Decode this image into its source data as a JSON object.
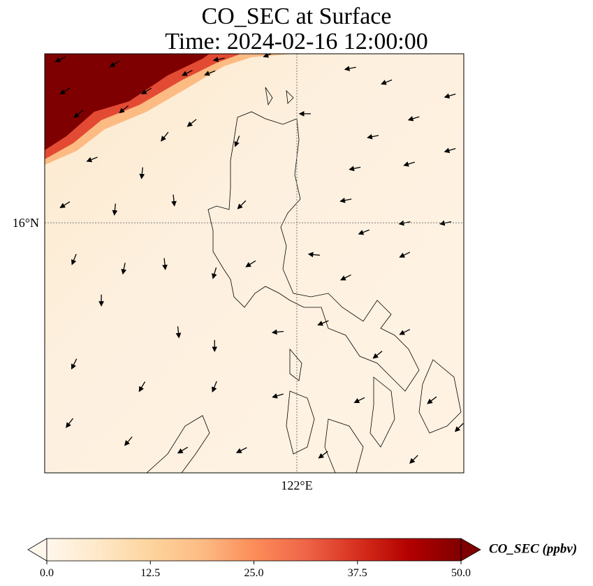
{
  "chart_data": {
    "type": "heatmap",
    "title_line1": "CO_SEC at Surface",
    "title_line2": "Time: 2024-02-16 12:00:00",
    "extent": {
      "lon": [
        116.45,
        125.7
      ],
      "lat": [
        10.5,
        19.72
      ]
    },
    "xticks": [
      {
        "value": 122,
        "label": "122°E"
      }
    ],
    "yticks": [
      {
        "value": 16,
        "label": "16°N"
      }
    ],
    "gridlines": "dotted",
    "colorbar": {
      "label": "CO_SEC (ppbv)",
      "range": [
        0,
        50
      ],
      "ticks": [
        "0.0",
        "12.5",
        "25.0",
        "37.5",
        "50.0"
      ],
      "extend": "both",
      "colormap": [
        "#fff7ec",
        "#fee8c8",
        "#fdd49e",
        "#fdbb84",
        "#fc8d59",
        "#ef6548",
        "#d7301f",
        "#b30000",
        "#7f0000"
      ]
    },
    "high_region_value": 50,
    "background_value": 3,
    "wind_vectors": [
      {
        "lon": 116.8,
        "lat": 19.6,
        "u": -1,
        "v": -0.5
      },
      {
        "lon": 118.0,
        "lat": 19.5,
        "u": -1,
        "v": -0.6
      },
      {
        "lon": 119.6,
        "lat": 19.3,
        "u": -1,
        "v": -0.5
      },
      {
        "lon": 120.1,
        "lat": 19.3,
        "u": -1,
        "v": -0.4
      },
      {
        "lon": 116.9,
        "lat": 18.9,
        "u": -1,
        "v": -0.6
      },
      {
        "lon": 118.7,
        "lat": 18.9,
        "u": -1,
        "v": -0.6
      },
      {
        "lon": 117.2,
        "lat": 18.4,
        "u": -1,
        "v": -0.8
      },
      {
        "lon": 118.2,
        "lat": 18.5,
        "u": -1,
        "v": -0.8
      },
      {
        "lon": 119.7,
        "lat": 18.2,
        "u": -1,
        "v": -0.8
      },
      {
        "lon": 120.3,
        "lat": 19.6,
        "u": -1,
        "v": -0.2
      },
      {
        "lon": 121.4,
        "lat": 19.7,
        "u": -1,
        "v": -0.4
      },
      {
        "lon": 123.2,
        "lat": 19.4,
        "u": -1,
        "v": -0.2
      },
      {
        "lon": 124.0,
        "lat": 19.1,
        "u": -1,
        "v": -0.4
      },
      {
        "lon": 125.4,
        "lat": 18.8,
        "u": -1,
        "v": -0.3
      },
      {
        "lon": 124.6,
        "lat": 18.3,
        "u": -1,
        "v": -0.3
      },
      {
        "lon": 123.7,
        "lat": 17.9,
        "u": -1,
        "v": -0.2
      },
      {
        "lon": 125.4,
        "lat": 17.6,
        "u": -1,
        "v": -0.3
      },
      {
        "lon": 124.5,
        "lat": 17.3,
        "u": -1,
        "v": -0.3
      },
      {
        "lon": 123.3,
        "lat": 17.2,
        "u": -1,
        "v": -0.2
      },
      {
        "lon": 122.2,
        "lat": 18.4,
        "u": -1,
        "v": 0
      },
      {
        "lon": 120.7,
        "lat": 17.8,
        "u": -0.4,
        "v": -1
      },
      {
        "lon": 119.1,
        "lat": 17.9,
        "u": -0.8,
        "v": -1
      },
      {
        "lon": 117.5,
        "lat": 17.4,
        "u": -1,
        "v": -0.4
      },
      {
        "lon": 118.6,
        "lat": 17.1,
        "u": -0.1,
        "v": -1
      },
      {
        "lon": 116.9,
        "lat": 16.4,
        "u": -0.8,
        "v": -0.5
      },
      {
        "lon": 118.0,
        "lat": 16.3,
        "u": -0.1,
        "v": -1
      },
      {
        "lon": 119.3,
        "lat": 16.5,
        "u": 0.1,
        "v": -1
      },
      {
        "lon": 120.8,
        "lat": 16.4,
        "u": -0.6,
        "v": -0.6
      },
      {
        "lon": 123.1,
        "lat": 16.5,
        "u": -1,
        "v": -0.2
      },
      {
        "lon": 124.4,
        "lat": 16.0,
        "u": -1,
        "v": -0.2
      },
      {
        "lon": 125.3,
        "lat": 16.0,
        "u": -1,
        "v": -0.2
      },
      {
        "lon": 123.5,
        "lat": 15.8,
        "u": -1,
        "v": -0.4
      },
      {
        "lon": 124.4,
        "lat": 15.3,
        "u": -1,
        "v": -0.5
      },
      {
        "lon": 123.1,
        "lat": 14.8,
        "u": -1,
        "v": -0.5
      },
      {
        "lon": 117.1,
        "lat": 15.2,
        "u": -0.4,
        "v": -1
      },
      {
        "lon": 118.2,
        "lat": 15.0,
        "u": -0.2,
        "v": -1
      },
      {
        "lon": 119.1,
        "lat": 15.1,
        "u": 0.1,
        "v": -1
      },
      {
        "lon": 120.2,
        "lat": 14.9,
        "u": -0.3,
        "v": -1
      },
      {
        "lon": 121.0,
        "lat": 15.1,
        "u": -0.8,
        "v": -0.5
      },
      {
        "lon": 122.4,
        "lat": 15.3,
        "u": -1,
        "v": 0.1
      },
      {
        "lon": 117.7,
        "lat": 14.3,
        "u": 0,
        "v": -1
      },
      {
        "lon": 119.4,
        "lat": 13.6,
        "u": 0.1,
        "v": -1
      },
      {
        "lon": 120.2,
        "lat": 13.3,
        "u": 0,
        "v": -1
      },
      {
        "lon": 121.6,
        "lat": 13.6,
        "u": -1,
        "v": -0.1
      },
      {
        "lon": 122.6,
        "lat": 13.8,
        "u": -1,
        "v": -0.4
      },
      {
        "lon": 124.4,
        "lat": 13.6,
        "u": -1,
        "v": -0.5
      },
      {
        "lon": 123.8,
        "lat": 13.1,
        "u": -1,
        "v": -0.8
      },
      {
        "lon": 117.1,
        "lat": 12.9,
        "u": -0.5,
        "v": -1
      },
      {
        "lon": 118.6,
        "lat": 12.4,
        "u": -0.6,
        "v": -1
      },
      {
        "lon": 120.2,
        "lat": 12.4,
        "u": -0.4,
        "v": -1
      },
      {
        "lon": 121.6,
        "lat": 12.2,
        "u": -1,
        "v": -0.3
      },
      {
        "lon": 123.4,
        "lat": 12.1,
        "u": -1,
        "v": -0.5
      },
      {
        "lon": 125.0,
        "lat": 12.1,
        "u": -0.8,
        "v": -0.6
      },
      {
        "lon": 117.0,
        "lat": 11.6,
        "u": -0.6,
        "v": -0.8
      },
      {
        "lon": 118.3,
        "lat": 11.2,
        "u": -0.6,
        "v": -0.7
      },
      {
        "lon": 119.5,
        "lat": 11.0,
        "u": -1,
        "v": -0.6
      },
      {
        "lon": 120.8,
        "lat": 11.0,
        "u": -1,
        "v": -0.5
      },
      {
        "lon": 122.6,
        "lat": 10.9,
        "u": -0.8,
        "v": -0.6
      },
      {
        "lon": 124.6,
        "lat": 10.8,
        "u": -0.6,
        "v": -0.6
      },
      {
        "lon": 125.6,
        "lat": 11.5,
        "u": -0.6,
        "v": -0.6
      }
    ]
  }
}
